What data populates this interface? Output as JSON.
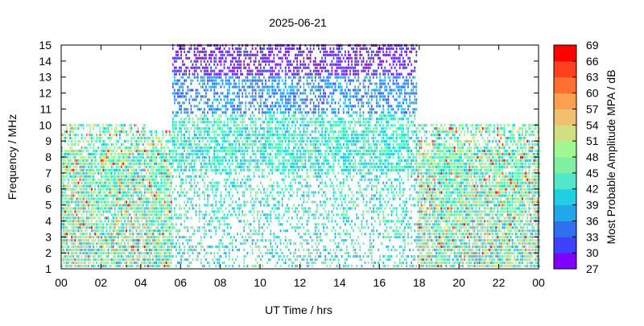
{
  "chart_data": {
    "type": "heatmap",
    "title": "2025-06-21",
    "xlabel": "UT Time / hrs",
    "ylabel": "Frequency / MHz",
    "xlim": [
      0,
      24
    ],
    "ylim": [
      1,
      15
    ],
    "x_ticks": [
      "00",
      "02",
      "04",
      "06",
      "08",
      "10",
      "12",
      "14",
      "16",
      "18",
      "20",
      "22",
      "00"
    ],
    "y_ticks": [
      "1",
      "2",
      "3",
      "4",
      "5",
      "6",
      "7",
      "8",
      "9",
      "10",
      "11",
      "12",
      "13",
      "14",
      "15"
    ],
    "grid": false,
    "colorbar": {
      "label": "Most Probable Amplitude MPA / dB",
      "ticks": [
        "27",
        "30",
        "33",
        "36",
        "39",
        "42",
        "45",
        "48",
        "51",
        "54",
        "57",
        "60",
        "63",
        "66",
        "69"
      ],
      "range": [
        27,
        69
      ],
      "colors": [
        "#8000ff",
        "#4040ff",
        "#3070f0",
        "#20a8e8",
        "#20d0e0",
        "#50e8c8",
        "#80f0a0",
        "#a0f890",
        "#d0e080",
        "#f0c070",
        "#ffa050",
        "#ff7030",
        "#ff4020",
        "#ff0000"
      ]
    },
    "coverage": {
      "description_free": true,
      "upper_frequency_limit_mhz": [
        {
          "from": 0,
          "to": 4.3,
          "max_mhz": 10
        },
        {
          "from": 4.3,
          "to": 5.5,
          "max_mhz": 9.6
        },
        {
          "from": 5.5,
          "to": 17.9,
          "max_mhz": 15
        },
        {
          "from": 17.9,
          "to": 24,
          "max_mhz": 10
        }
      ]
    }
  }
}
